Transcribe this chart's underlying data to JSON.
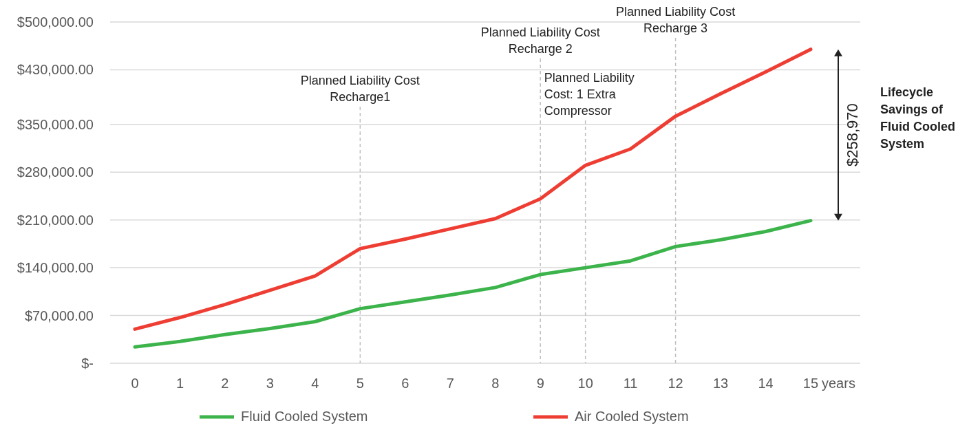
{
  "chart_data": {
    "type": "line",
    "x": [
      0,
      1,
      2,
      3,
      4,
      5,
      6,
      7,
      8,
      9,
      10,
      11,
      12,
      13,
      14,
      15
    ],
    "xlabel": "years",
    "xlim": [
      -0.55,
      16.1
    ],
    "xticks": [
      0,
      1,
      2,
      3,
      4,
      5,
      6,
      7,
      8,
      9,
      10,
      11,
      12,
      13,
      14,
      15
    ],
    "ylim": [
      0,
      500000
    ],
    "yticks": [
      {
        "value": 0,
        "label": "$-"
      },
      {
        "value": 70000,
        "label": "$70,000.00"
      },
      {
        "value": 140000,
        "label": "$140,000.00"
      },
      {
        "value": 210000,
        "label": "$210,000.00"
      },
      {
        "value": 280000,
        "label": "$280,000.00"
      },
      {
        "value": 350000,
        "label": "$350,000.00"
      },
      {
        "value": 430000,
        "label": "$430,000.00"
      },
      {
        "value": 500000,
        "label": "$500,000.00"
      }
    ],
    "grid": "y",
    "legend": "bottom",
    "marker": "none",
    "line_style": "solid",
    "series": [
      {
        "name": "Fluid Cooled System",
        "color": "#3cb44b",
        "values": [
          24000,
          32000,
          42000,
          51000,
          61000,
          80000,
          90000,
          100000,
          111000,
          130000,
          140000,
          150000,
          171000,
          181000,
          193000,
          209000
        ]
      },
      {
        "name": "Air Cooled System",
        "color": "#ee3e33",
        "values": [
          50000,
          67000,
          86000,
          107000,
          128000,
          168000,
          182000,
          197000,
          212000,
          241000,
          290000,
          314000,
          362000,
          395000,
          427000,
          460000
        ]
      }
    ],
    "ref_lines": [
      {
        "axis": "x",
        "value": 5,
        "label": "Planned Liability Cost\nRecharge1",
        "color": "#bfbfbf",
        "line_style": "dashed"
      },
      {
        "axis": "x",
        "value": 9,
        "label": "Planned Liability Cost\nRecharge 2",
        "color": "#bfbfbf",
        "line_style": "dashed"
      },
      {
        "axis": "x",
        "value": 10,
        "color": "#bfbfbf",
        "line_style": "dashed"
      },
      {
        "axis": "x",
        "value": 12,
        "label": "Planned Liability Cost\nRecharge 3",
        "color": "#bfbfbf",
        "line_style": "dashed"
      }
    ],
    "annotations": [
      "$258,970",
      "Lifecycle\nSavings of\nFluid Cooled\nSystem",
      "Planned Liability\nCost: 1 Extra\nCompressor"
    ]
  }
}
